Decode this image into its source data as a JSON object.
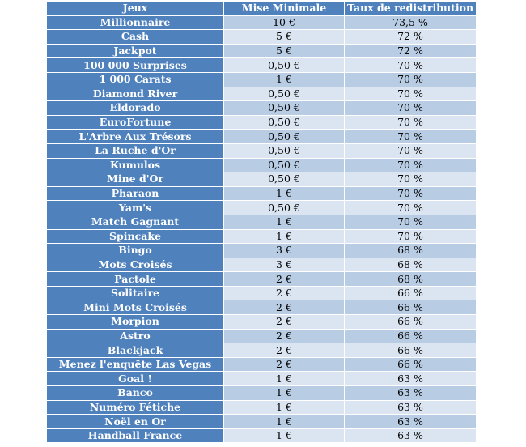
{
  "table": {
    "headers": [
      "Jeux",
      "Mise Minimale",
      "Taux de redistribution"
    ],
    "rows": [
      [
        "Millionnaire",
        "10 €",
        "73,5 %"
      ],
      [
        "Cash",
        "5 €",
        "72 %"
      ],
      [
        "Jackpot",
        "5 €",
        "72 %"
      ],
      [
        "100 000 Surprises",
        "0,50 €",
        "70 %"
      ],
      [
        "1 000 Carats",
        "1 €",
        "70 %"
      ],
      [
        "Diamond River",
        "0,50 €",
        "70 %"
      ],
      [
        "Eldorado",
        "0,50 €",
        "70 %"
      ],
      [
        "EuroFortune",
        "0,50 €",
        "70 %"
      ],
      [
        "L'Arbre Aux Trésors",
        "0,50 €",
        "70 %"
      ],
      [
        "La Ruche d'Or",
        "0,50 €",
        "70 %"
      ],
      [
        "Kumulos",
        "0,50 €",
        "70 %"
      ],
      [
        "Mine d'Or",
        "0,50 €",
        "70 %"
      ],
      [
        "Pharaon",
        "1 €",
        "70 %"
      ],
      [
        "Yam's",
        "0,50 €",
        "70 %"
      ],
      [
        "Match Gagnant",
        "1 €",
        "70 %"
      ],
      [
        "Spincake",
        "1 €",
        "70 %"
      ],
      [
        "Bingo",
        "3 €",
        "68 %"
      ],
      [
        "Mots Croisés",
        "3 €",
        "68 %"
      ],
      [
        "Pactole",
        "2 €",
        "68 %"
      ],
      [
        "Solitaire",
        "2 €",
        "66 %"
      ],
      [
        "Mini Mots Croisés",
        "2 €",
        "66 %"
      ],
      [
        "Morpion",
        "2 €",
        "66 %"
      ],
      [
        "Astro",
        "2 €",
        "66 %"
      ],
      [
        "Blackjack",
        "2 €",
        "66 %"
      ],
      [
        "Menez l'enquête Las Vegas",
        "2 €",
        "66 %"
      ],
      [
        "Goal !",
        "1 €",
        "63 %"
      ],
      [
        "Banco",
        "1 €",
        "63 %"
      ],
      [
        "Numéro Fétiche",
        "1 €",
        "63 %"
      ],
      [
        "Noël en Or",
        "1 €",
        "63 %"
      ],
      [
        "Handball France",
        "1 €",
        "63 %"
      ]
    ]
  },
  "colors": {
    "header_bg": "#4f81bd",
    "row_band_dark": "#b8cce4",
    "row_band_light": "#dbe5f1"
  }
}
